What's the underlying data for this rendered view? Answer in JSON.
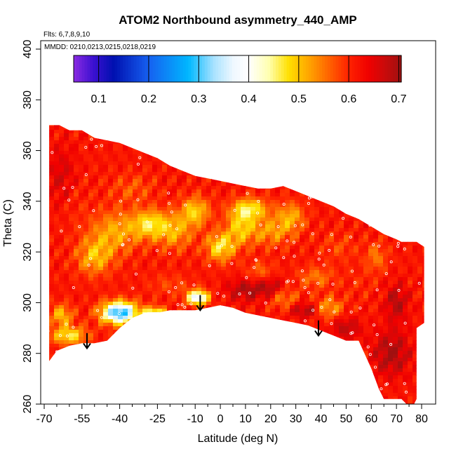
{
  "chart_data": {
    "type": "heatmap",
    "title": "ATOM2 Northbound asymmetry_440_AMP",
    "subtitle_flights": "Flts: 6,7,8,9,10",
    "subtitle_dates": "MMDD: 0210,0213,0215,0218,0219",
    "xlabel": "Latitude (deg N)",
    "ylabel": "Theta (C)",
    "xlim": [
      -70,
      80
    ],
    "ylim": [
      260,
      400
    ],
    "x_major_ticks": [
      -70,
      -55,
      -40,
      -25,
      -10,
      0,
      10,
      20,
      30,
      40,
      50,
      60,
      70,
      80
    ],
    "x_major_labels": [
      "-70",
      "-55",
      "-40",
      "-25",
      "-10",
      "0",
      "10",
      "20",
      "30",
      "40",
      "50",
      "60",
      "70",
      "80"
    ],
    "x_minor_ticks": [
      -65,
      -60,
      -50,
      -45,
      -35,
      -30,
      -20,
      -15,
      -5,
      5,
      15,
      25,
      35,
      45,
      55,
      65,
      75
    ],
    "y_ticks": [
      260,
      280,
      300,
      320,
      340,
      360,
      380,
      400
    ],
    "y_labels": [
      "260",
      "280",
      "300",
      "320",
      "340",
      "360",
      "380",
      "400"
    ],
    "colorbar": {
      "range": [
        0.05,
        0.705
      ],
      "ticks": [
        0.1,
        0.2,
        0.3,
        0.4,
        0.5,
        0.6,
        0.7
      ],
      "labels": [
        "0.1",
        "0.2",
        "0.3",
        "0.4",
        "0.5",
        "0.6",
        "0.7"
      ],
      "colors": [
        {
          "v": 0.05,
          "c": "#8a2be2"
        },
        {
          "v": 0.09,
          "c": "#3a10d0"
        },
        {
          "v": 0.13,
          "c": "#0010b0"
        },
        {
          "v": 0.2,
          "c": "#1660f0"
        },
        {
          "v": 0.28,
          "c": "#00b8ff"
        },
        {
          "v": 0.33,
          "c": "#a8e2ff"
        },
        {
          "v": 0.37,
          "c": "#f0f8ff"
        },
        {
          "v": 0.4,
          "c": "#ffffff"
        },
        {
          "v": 0.44,
          "c": "#ffffb0"
        },
        {
          "v": 0.48,
          "c": "#ffe000"
        },
        {
          "v": 0.52,
          "c": "#ffa500"
        },
        {
          "v": 0.56,
          "c": "#ff6400"
        },
        {
          "v": 0.6,
          "c": "#ff2200"
        },
        {
          "v": 0.64,
          "c": "#f00000"
        },
        {
          "v": 0.67,
          "c": "#cc0a0a"
        },
        {
          "v": 0.705,
          "c": "#a01010"
        }
      ]
    },
    "domain_top": [
      [
        -68,
        370
      ],
      [
        -64,
        370
      ],
      [
        -60,
        368
      ],
      [
        -55,
        368
      ],
      [
        -50,
        365
      ],
      [
        -45,
        364
      ],
      [
        -40,
        363
      ],
      [
        -35,
        361
      ],
      [
        -30,
        359
      ],
      [
        -25,
        357
      ],
      [
        -20,
        354
      ],
      [
        -15,
        352
      ],
      [
        -10,
        350
      ],
      [
        -5,
        349
      ],
      [
        0,
        348
      ],
      [
        5,
        347
      ],
      [
        10,
        346
      ],
      [
        15,
        345
      ],
      [
        20,
        345
      ],
      [
        25,
        346
      ],
      [
        30,
        344
      ],
      [
        35,
        342
      ],
      [
        40,
        340
      ],
      [
        45,
        338
      ],
      [
        50,
        335
      ],
      [
        55,
        333
      ],
      [
        60,
        330
      ],
      [
        65,
        327
      ],
      [
        70,
        325
      ],
      [
        72,
        324
      ]
    ],
    "domain_bottom": [
      [
        -68,
        277
      ],
      [
        -65,
        281
      ],
      [
        -60,
        283
      ],
      [
        -55,
        284
      ],
      [
        -50,
        284
      ],
      [
        -45,
        285
      ],
      [
        -40,
        290
      ],
      [
        -35,
        294
      ],
      [
        -30,
        296
      ],
      [
        -25,
        296
      ],
      [
        -20,
        297
      ],
      [
        -15,
        297
      ],
      [
        -10,
        297
      ],
      [
        -5,
        298
      ],
      [
        0,
        299
      ],
      [
        5,
        298
      ],
      [
        10,
        296
      ],
      [
        15,
        295
      ],
      [
        20,
        294
      ],
      [
        25,
        293
      ],
      [
        30,
        292
      ],
      [
        35,
        291
      ],
      [
        40,
        289
      ],
      [
        45,
        287
      ],
      [
        50,
        285
      ],
      [
        55,
        285
      ],
      [
        60,
        274
      ],
      [
        63,
        266
      ],
      [
        65,
        262
      ],
      [
        72,
        262
      ],
      [
        74,
        260
      ],
      [
        77,
        260
      ],
      [
        78,
        262
      ],
      [
        78,
        290
      ],
      [
        81,
        292
      ],
      [
        81,
        322
      ],
      [
        78,
        324
      ],
      [
        74,
        324
      ]
    ],
    "arrows": [
      {
        "lat": -53,
        "theta_from": 288,
        "theta_to": 282
      },
      {
        "lat": -8,
        "theta_from": 303,
        "theta_to": 297
      },
      {
        "lat": 39,
        "theta_from": 293,
        "theta_to": 287
      }
    ],
    "field_base_value": 0.615,
    "anomalies": [
      {
        "lat": -40,
        "theta": 296,
        "sx": 5,
        "sy": 3,
        "v": 0.27
      },
      {
        "lat": -26,
        "theta": 295,
        "sx": 3,
        "sy": 2,
        "v": 0.36
      },
      {
        "lat": -63,
        "theta": 295,
        "sx": 3,
        "sy": 3,
        "v": 0.5
      },
      {
        "lat": -60,
        "theta": 287,
        "sx": 5,
        "sy": 2.5,
        "v": 0.47
      },
      {
        "lat": -9,
        "theta": 302,
        "sx": 3,
        "sy": 2,
        "v": 0.35
      },
      {
        "lat": -42,
        "theta": 328,
        "sx": 7,
        "sy": 6,
        "v": 0.52
      },
      {
        "lat": -50,
        "theta": 318,
        "sx": 5,
        "sy": 5,
        "v": 0.51
      },
      {
        "lat": -28,
        "theta": 331,
        "sx": 5,
        "sy": 4,
        "v": 0.48
      },
      {
        "lat": -18,
        "theta": 328,
        "sx": 5,
        "sy": 5,
        "v": 0.52
      },
      {
        "lat": -10,
        "theta": 336,
        "sx": 4,
        "sy": 4,
        "v": 0.49
      },
      {
        "lat": 0,
        "theta": 322,
        "sx": 4,
        "sy": 4,
        "v": 0.47
      },
      {
        "lat": 8,
        "theta": 330,
        "sx": 4,
        "sy": 5,
        "v": 0.5
      },
      {
        "lat": 12,
        "theta": 337,
        "sx": 5,
        "sy": 3,
        "v": 0.48
      },
      {
        "lat": 20,
        "theta": 328,
        "sx": 6,
        "sy": 4,
        "v": 0.53
      },
      {
        "lat": 28,
        "theta": 334,
        "sx": 4,
        "sy": 4,
        "v": 0.52
      },
      {
        "lat": 16,
        "theta": 312,
        "sx": 4,
        "sy": 3,
        "v": 0.56
      },
      {
        "lat": 38,
        "theta": 310,
        "sx": 5,
        "sy": 3,
        "v": 0.55
      },
      {
        "lat": 43,
        "theta": 298,
        "sx": 4,
        "sy": 3,
        "v": 0.52
      },
      {
        "lat": 25,
        "theta": 302,
        "sx": 4,
        "sy": 3,
        "v": 0.54
      },
      {
        "lat": -35,
        "theta": 345,
        "sx": 6,
        "sy": 4,
        "v": 0.57
      },
      {
        "lat": -58,
        "theta": 340,
        "sx": 4,
        "sy": 8,
        "v": 0.6
      },
      {
        "lat": -20,
        "theta": 307,
        "sx": 6,
        "sy": 3,
        "v": 0.58
      },
      {
        "lat": 55,
        "theta": 308,
        "sx": 5,
        "sy": 5,
        "v": 0.6
      },
      {
        "lat": 62,
        "theta": 318,
        "sx": 3,
        "sy": 4,
        "v": 0.55
      },
      {
        "lat": 47,
        "theta": 322,
        "sx": 5,
        "sy": 4,
        "v": 0.58
      },
      {
        "lat": 10,
        "theta": 305,
        "sx": 5,
        "sy": 3,
        "v": 0.69
      },
      {
        "lat": 20,
        "theta": 306,
        "sx": 4,
        "sy": 3,
        "v": 0.69
      },
      {
        "lat": 34,
        "theta": 297,
        "sx": 4,
        "sy": 2,
        "v": 0.7
      },
      {
        "lat": 68,
        "theta": 280,
        "sx": 5,
        "sy": 6,
        "v": 0.7
      },
      {
        "lat": 70,
        "theta": 300,
        "sx": 3,
        "sy": 5,
        "v": 0.69
      },
      {
        "lat": -63,
        "theta": 350,
        "sx": 4,
        "sy": 8,
        "v": 0.66
      },
      {
        "lat": 50,
        "theta": 290,
        "sx": 4,
        "sy": 3,
        "v": 0.68
      }
    ]
  }
}
